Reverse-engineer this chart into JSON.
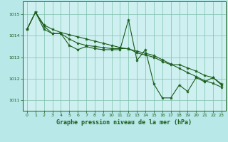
{
  "title": "Graphe pression niveau de la mer (hPa)",
  "bg_color": "#b8e8e8",
  "plot_bg_color": "#cef0f0",
  "line_color": "#1a5c1a",
  "grid_color": "#7dbfaa",
  "text_color": "#1a5c1a",
  "xlim": [
    -0.5,
    23.5
  ],
  "ylim": [
    1010.5,
    1015.6
  ],
  "yticks": [
    1011,
    1012,
    1013,
    1014,
    1015
  ],
  "xticks": [
    0,
    1,
    2,
    3,
    4,
    5,
    6,
    7,
    8,
    9,
    10,
    11,
    12,
    13,
    14,
    15,
    16,
    17,
    18,
    19,
    20,
    21,
    22,
    23
  ],
  "series1": [
    1014.3,
    1015.1,
    1014.3,
    1014.1,
    1014.1,
    1013.55,
    1013.35,
    1013.5,
    1013.4,
    1013.35,
    1013.35,
    1013.35,
    1014.75,
    1012.85,
    1013.35,
    1011.75,
    1011.1,
    1011.1,
    1011.7,
    1011.4,
    1012.05,
    1011.85,
    1012.05,
    1011.7
  ],
  "series2": [
    1014.3,
    1015.1,
    1014.45,
    1014.1,
    1014.1,
    1013.85,
    1013.65,
    1013.55,
    1013.5,
    1013.45,
    1013.4,
    1013.4,
    1013.4,
    1013.2,
    1013.1,
    1013.0,
    1012.8,
    1012.65,
    1012.65,
    1012.5,
    1012.35,
    1012.15,
    1012.05,
    1011.75
  ],
  "series3": [
    1014.3,
    1015.1,
    1014.5,
    1014.3,
    1014.15,
    1014.05,
    1013.95,
    1013.85,
    1013.75,
    1013.65,
    1013.55,
    1013.45,
    1013.38,
    1013.28,
    1013.18,
    1013.08,
    1012.88,
    1012.68,
    1012.48,
    1012.28,
    1012.1,
    1011.9,
    1011.78,
    1011.6
  ]
}
